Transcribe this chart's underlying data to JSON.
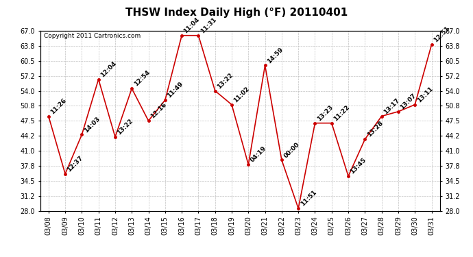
{
  "title": "THSW Index Daily High (°F) 20110401",
  "copyright": "Copyright 2011 Cartronics.com",
  "dates": [
    "03/08",
    "03/09",
    "03/10",
    "03/11",
    "03/12",
    "03/13",
    "03/14",
    "03/15",
    "03/16",
    "03/17",
    "03/18",
    "03/19",
    "03/20",
    "03/21",
    "03/22",
    "03/23",
    "03/24",
    "03/25",
    "03/26",
    "03/27",
    "03/28",
    "03/29",
    "03/30",
    "03/31"
  ],
  "values": [
    48.5,
    36.0,
    44.5,
    56.5,
    44.0,
    54.5,
    47.5,
    52.0,
    66.0,
    66.0,
    54.0,
    51.0,
    38.0,
    59.5,
    39.0,
    28.5,
    47.0,
    47.0,
    35.5,
    43.5,
    48.5,
    49.5,
    51.0,
    64.0
  ],
  "times": [
    "11:26",
    "12:37",
    "14:03",
    "12:04",
    "13:22",
    "12:54",
    "12:16",
    "11:49",
    "11:04",
    "11:31",
    "13:22",
    "11:02",
    "04:19",
    "14:59",
    "00:00",
    "11:51",
    "13:23",
    "11:22",
    "13:45",
    "13:28",
    "13:17",
    "13:07",
    "13:11",
    "12:51"
  ],
  "line_color": "#cc0000",
  "marker_color": "#cc0000",
  "bg_color": "#ffffff",
  "plot_bg_color": "#ffffff",
  "grid_color": "#c0c0c0",
  "title_fontsize": 11,
  "label_fontsize": 6.5,
  "tick_fontsize": 7,
  "copyright_fontsize": 6.5,
  "ylim": [
    28.0,
    67.0
  ],
  "yticks": [
    28.0,
    31.2,
    34.5,
    37.8,
    41.0,
    44.2,
    47.5,
    50.8,
    54.0,
    57.2,
    60.5,
    63.8,
    67.0
  ]
}
